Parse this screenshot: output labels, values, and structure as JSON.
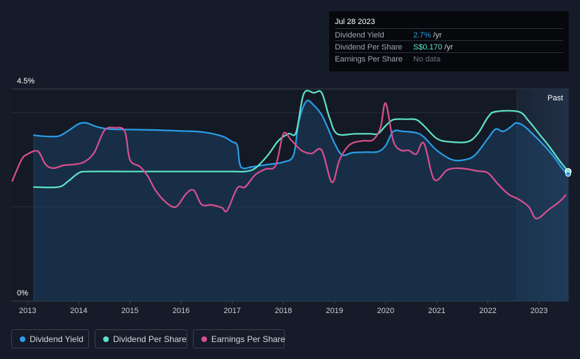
{
  "tooltip": {
    "date": "Jul 28 2023",
    "rows": [
      {
        "label": "Dividend Yield",
        "value": "2.7%",
        "unit": " /yr",
        "color": "#2a9de8"
      },
      {
        "label": "Dividend Per Share",
        "value": "S$0.170",
        "unit": " /yr",
        "color": "#5fe3c8"
      },
      {
        "label": "Earnings Per Share",
        "value": "No data",
        "unit": "",
        "color": "#6b7280"
      }
    ]
  },
  "legend": [
    {
      "label": "Dividend Yield",
      "color": "#2a9de8"
    },
    {
      "label": "Dividend Per Share",
      "color": "#5fe3c8"
    },
    {
      "label": "Earnings Per Share",
      "color": "#d8508f"
    }
  ],
  "past_label": "Past",
  "chart_data": {
    "type": "line",
    "ylim": [
      0,
      4.5
    ],
    "y_tick_labels": [
      {
        "value": 4.5,
        "label": "4.5%"
      },
      {
        "value": 0,
        "label": "0%"
      }
    ],
    "xlim": [
      2012.68,
      2023.58
    ],
    "x_ticks": [
      "2013",
      "2014",
      "2015",
      "2016",
      "2017",
      "2018",
      "2019",
      "2020",
      "2021",
      "2022",
      "2023"
    ],
    "past_start": 2022.57,
    "series": [
      {
        "name": "Dividend Yield",
        "color": "#2a9de8",
        "fill": true,
        "points": [
          [
            2013.12,
            3.52
          ],
          [
            2013.3,
            3.5
          ],
          [
            2013.6,
            3.5
          ],
          [
            2013.8,
            3.62
          ],
          [
            2014.0,
            3.76
          ],
          [
            2014.15,
            3.78
          ],
          [
            2014.35,
            3.7
          ],
          [
            2014.6,
            3.65
          ],
          [
            2015.0,
            3.64
          ],
          [
            2015.5,
            3.63
          ],
          [
            2016.0,
            3.61
          ],
          [
            2016.4,
            3.59
          ],
          [
            2016.8,
            3.5
          ],
          [
            2017.0,
            3.38
          ],
          [
            2017.1,
            3.3
          ],
          [
            2017.17,
            2.85
          ],
          [
            2017.4,
            2.85
          ],
          [
            2017.7,
            2.9
          ],
          [
            2018.0,
            2.95
          ],
          [
            2018.2,
            3.1
          ],
          [
            2018.3,
            3.8
          ],
          [
            2018.45,
            4.24
          ],
          [
            2018.6,
            4.15
          ],
          [
            2018.75,
            3.95
          ],
          [
            2018.9,
            3.6
          ],
          [
            2019.0,
            3.35
          ],
          [
            2019.15,
            3.1
          ],
          [
            2019.35,
            3.15
          ],
          [
            2019.6,
            3.16
          ],
          [
            2019.85,
            3.17
          ],
          [
            2020.0,
            3.3
          ],
          [
            2020.15,
            3.6
          ],
          [
            2020.35,
            3.6
          ],
          [
            2020.6,
            3.57
          ],
          [
            2020.75,
            3.48
          ],
          [
            2021.0,
            3.2
          ],
          [
            2021.3,
            3.0
          ],
          [
            2021.55,
            3.0
          ],
          [
            2021.75,
            3.1
          ],
          [
            2022.0,
            3.45
          ],
          [
            2022.15,
            3.65
          ],
          [
            2022.3,
            3.6
          ],
          [
            2022.45,
            3.7
          ],
          [
            2022.55,
            3.78
          ],
          [
            2022.7,
            3.72
          ],
          [
            2022.9,
            3.52
          ],
          [
            2023.1,
            3.3
          ],
          [
            2023.3,
            3.05
          ],
          [
            2023.45,
            2.82
          ],
          [
            2023.57,
            2.7
          ]
        ]
      },
      {
        "name": "Dividend Per Share",
        "color": "#5fe3c8",
        "fill": false,
        "points": [
          [
            2013.12,
            2.42
          ],
          [
            2013.6,
            2.42
          ],
          [
            2013.8,
            2.55
          ],
          [
            2014.0,
            2.72
          ],
          [
            2014.2,
            2.75
          ],
          [
            2015.0,
            2.75
          ],
          [
            2016.0,
            2.75
          ],
          [
            2017.0,
            2.75
          ],
          [
            2017.25,
            2.75
          ],
          [
            2017.45,
            2.82
          ],
          [
            2017.7,
            3.1
          ],
          [
            2017.9,
            3.4
          ],
          [
            2018.1,
            3.55
          ],
          [
            2018.25,
            3.58
          ],
          [
            2018.4,
            4.4
          ],
          [
            2018.6,
            4.42
          ],
          [
            2018.75,
            4.42
          ],
          [
            2018.9,
            3.9
          ],
          [
            2019.05,
            3.55
          ],
          [
            2019.4,
            3.55
          ],
          [
            2019.7,
            3.55
          ],
          [
            2019.85,
            3.55
          ],
          [
            2020.0,
            3.72
          ],
          [
            2020.15,
            3.85
          ],
          [
            2020.4,
            3.86
          ],
          [
            2020.6,
            3.85
          ],
          [
            2020.75,
            3.72
          ],
          [
            2021.0,
            3.45
          ],
          [
            2021.25,
            3.38
          ],
          [
            2021.6,
            3.38
          ],
          [
            2021.8,
            3.55
          ],
          [
            2022.0,
            3.9
          ],
          [
            2022.15,
            4.02
          ],
          [
            2022.6,
            4.02
          ],
          [
            2022.8,
            3.82
          ],
          [
            2023.0,
            3.55
          ],
          [
            2023.2,
            3.28
          ],
          [
            2023.4,
            2.98
          ],
          [
            2023.57,
            2.75
          ]
        ]
      },
      {
        "name": "Earnings Per Share",
        "color": "#d8508f",
        "fill": false,
        "points": [
          [
            2012.7,
            2.55
          ],
          [
            2012.88,
            3.0
          ],
          [
            2013.0,
            3.12
          ],
          [
            2013.2,
            3.18
          ],
          [
            2013.35,
            2.9
          ],
          [
            2013.5,
            2.82
          ],
          [
            2013.7,
            2.88
          ],
          [
            2013.9,
            2.9
          ],
          [
            2014.1,
            2.95
          ],
          [
            2014.3,
            3.15
          ],
          [
            2014.5,
            3.62
          ],
          [
            2014.7,
            3.68
          ],
          [
            2014.9,
            3.6
          ],
          [
            2015.0,
            3.0
          ],
          [
            2015.2,
            2.85
          ],
          [
            2015.35,
            2.65
          ],
          [
            2015.5,
            2.35
          ],
          [
            2015.7,
            2.1
          ],
          [
            2015.9,
            2.0
          ],
          [
            2016.1,
            2.28
          ],
          [
            2016.25,
            2.35
          ],
          [
            2016.4,
            2.05
          ],
          [
            2016.6,
            2.04
          ],
          [
            2016.8,
            1.98
          ],
          [
            2016.9,
            1.92
          ],
          [
            2017.1,
            2.4
          ],
          [
            2017.25,
            2.42
          ],
          [
            2017.45,
            2.68
          ],
          [
            2017.65,
            2.8
          ],
          [
            2017.85,
            2.88
          ],
          [
            2018.0,
            3.55
          ],
          [
            2018.15,
            3.42
          ],
          [
            2018.35,
            3.2
          ],
          [
            2018.55,
            3.13
          ],
          [
            2018.75,
            3.2
          ],
          [
            2018.95,
            2.52
          ],
          [
            2019.1,
            3.0
          ],
          [
            2019.3,
            3.32
          ],
          [
            2019.55,
            3.4
          ],
          [
            2019.75,
            3.42
          ],
          [
            2019.9,
            3.68
          ],
          [
            2020.0,
            4.2
          ],
          [
            2020.15,
            3.4
          ],
          [
            2020.3,
            3.2
          ],
          [
            2020.45,
            3.2
          ],
          [
            2020.6,
            3.12
          ],
          [
            2020.75,
            3.35
          ],
          [
            2020.95,
            2.58
          ],
          [
            2021.2,
            2.78
          ],
          [
            2021.4,
            2.82
          ],
          [
            2021.6,
            2.8
          ],
          [
            2021.8,
            2.76
          ],
          [
            2022.0,
            2.72
          ],
          [
            2022.2,
            2.48
          ],
          [
            2022.4,
            2.27
          ],
          [
            2022.6,
            2.16
          ],
          [
            2022.8,
            2.0
          ],
          [
            2022.95,
            1.75
          ],
          [
            2023.2,
            1.95
          ],
          [
            2023.4,
            2.11
          ],
          [
            2023.52,
            2.25
          ]
        ]
      }
    ]
  }
}
